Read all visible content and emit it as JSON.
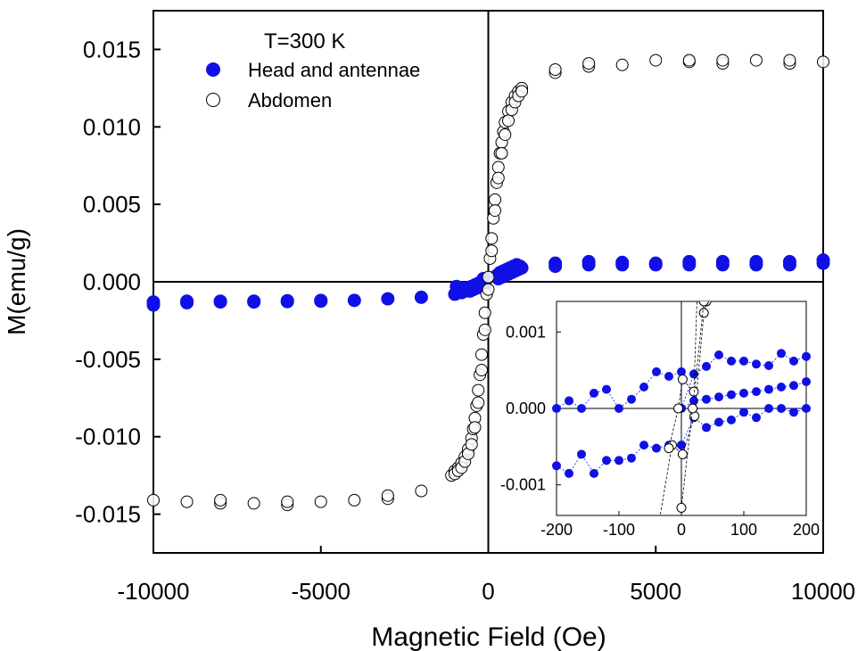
{
  "chart_data": [
    {
      "type": "scatter",
      "title": "",
      "annotation": "T=300 K",
      "xlabel": "Magnetic Field (Oe)",
      "ylabel": "M(emu/g)",
      "xlim": [
        -10000,
        10000
      ],
      "ylim": [
        -0.0175,
        0.0175
      ],
      "x_ticks": [
        -10000,
        -5000,
        0,
        5000,
        10000
      ],
      "x_tick_labels": [
        "-10000",
        "-5000",
        "0",
        "5000",
        "10000"
      ],
      "y_ticks": [
        -0.015,
        -0.01,
        -0.005,
        0.0,
        0.005,
        0.01,
        0.015
      ],
      "y_tick_labels": [
        "-0.015",
        "-0.010",
        "-0.005",
        "0.000",
        "0.005",
        "0.010",
        "0.015"
      ],
      "grid": false,
      "legend": "top-left",
      "series": [
        {
          "name": "Head and antennae",
          "marker": "filled-circle",
          "color": "#1010e6",
          "points": [
            [
              -10000,
              -0.0015
            ],
            [
              -10000,
              -0.0013
            ],
            [
              -9000,
              -0.00135
            ],
            [
              -9000,
              -0.00125
            ],
            [
              -8000,
              -0.0013
            ],
            [
              -8000,
              -0.00125
            ],
            [
              -7000,
              -0.0013
            ],
            [
              -7000,
              -0.00125
            ],
            [
              -6000,
              -0.00128
            ],
            [
              -6000,
              -0.00122
            ],
            [
              -5000,
              -0.00125
            ],
            [
              -5000,
              -0.0012
            ],
            [
              -4000,
              -0.0012
            ],
            [
              -3000,
              -0.0011
            ],
            [
              -2000,
              -0.001
            ],
            [
              -1000,
              -0.0008
            ],
            [
              -950,
              -0.0003
            ],
            [
              -900,
              -0.0006
            ],
            [
              -850,
              -0.0005
            ],
            [
              -800,
              -0.0007
            ],
            [
              -750,
              -0.0004
            ],
            [
              -700,
              -0.0006
            ],
            [
              -650,
              -0.0005
            ],
            [
              -600,
              -0.0004
            ],
            [
              -550,
              -0.0006
            ],
            [
              -500,
              -0.0003
            ],
            [
              -450,
              -0.0005
            ],
            [
              -400,
              -0.0002
            ],
            [
              -350,
              -0.0004
            ],
            [
              -300,
              -0.0001
            ],
            [
              -250,
              -0.0003
            ],
            [
              -200,
              0.0
            ],
            [
              -150,
              0.0002
            ],
            [
              -100,
              -0.0002
            ],
            [
              250,
              0.0004
            ],
            [
              300,
              0.0002
            ],
            [
              350,
              0.0006
            ],
            [
              400,
              0.0003
            ],
            [
              450,
              0.0007
            ],
            [
              500,
              0.0004
            ],
            [
              550,
              0.0008
            ],
            [
              600,
              0.0005
            ],
            [
              650,
              0.0009
            ],
            [
              700,
              0.0006
            ],
            [
              750,
              0.001
            ],
            [
              800,
              0.0007
            ],
            [
              850,
              0.0011
            ],
            [
              900,
              0.0008
            ],
            [
              950,
              0.001
            ],
            [
              1000,
              0.0009
            ],
            [
              2000,
              0.0012
            ],
            [
              2000,
              0.001
            ],
            [
              3000,
              0.0013
            ],
            [
              3000,
              0.0011
            ],
            [
              4000,
              0.00125
            ],
            [
              4000,
              0.0011
            ],
            [
              5000,
              0.0012
            ],
            [
              5000,
              0.0011
            ],
            [
              6000,
              0.0013
            ],
            [
              6000,
              0.0011
            ],
            [
              7000,
              0.0013
            ],
            [
              7000,
              0.0011
            ],
            [
              8000,
              0.0013
            ],
            [
              8000,
              0.0011
            ],
            [
              9000,
              0.0013
            ],
            [
              9000,
              0.0011
            ],
            [
              10000,
              0.0014
            ],
            [
              10000,
              0.0012
            ]
          ]
        },
        {
          "name": "Abdomen",
          "marker": "open-circle",
          "color": "#000000",
          "points": [
            [
              -10000,
              -0.0141
            ],
            [
              -9000,
              -0.0142
            ],
            [
              -8000,
              -0.0143
            ],
            [
              -8000,
              -0.0141
            ],
            [
              -7000,
              -0.0143
            ],
            [
              -6000,
              -0.0144
            ],
            [
              -6000,
              -0.0142
            ],
            [
              -5000,
              -0.0142
            ],
            [
              -4000,
              -0.0141
            ],
            [
              -3000,
              -0.014
            ],
            [
              -3000,
              -0.0138
            ],
            [
              -2000,
              -0.0135
            ],
            [
              -1100,
              -0.0125
            ],
            [
              -1000,
              -0.0122
            ],
            [
              -900,
              -0.012
            ],
            [
              -800,
              -0.0117
            ],
            [
              -700,
              -0.0113
            ],
            [
              -600,
              -0.0108
            ],
            [
              -500,
              -0.0101
            ],
            [
              -450,
              -0.0095
            ],
            [
              -400,
              -0.0088
            ],
            [
              -350,
              -0.008
            ],
            [
              -300,
              -0.007
            ],
            [
              -250,
              -0.006
            ],
            [
              -200,
              -0.0047
            ],
            [
              -150,
              -0.0034
            ],
            [
              -100,
              -0.002
            ],
            [
              -50,
              -0.0008
            ],
            [
              0,
              0.0003
            ],
            [
              50,
              0.0015
            ],
            [
              100,
              0.0028
            ],
            [
              150,
              0.0041
            ],
            [
              200,
              0.0053
            ],
            [
              250,
              0.0064
            ],
            [
              300,
              0.0074
            ],
            [
              350,
              0.0083
            ],
            [
              400,
              0.009
            ],
            [
              450,
              0.0097
            ],
            [
              500,
              0.0103
            ],
            [
              600,
              0.011
            ],
            [
              700,
              0.0116
            ],
            [
              800,
              0.012
            ],
            [
              900,
              0.0123
            ],
            [
              1000,
              0.0125
            ],
            [
              -1000,
              -0.0124
            ],
            [
              -900,
              -0.0122
            ],
            [
              -800,
              -0.012
            ],
            [
              -700,
              -0.0116
            ],
            [
              -600,
              -0.0111
            ],
            [
              -500,
              -0.0105
            ],
            [
              -400,
              -0.0094
            ],
            [
              -300,
              -0.0078
            ],
            [
              -200,
              -0.0057
            ],
            [
              -100,
              -0.0031
            ],
            [
              0,
              -0.0005
            ],
            [
              100,
              0.002
            ],
            [
              200,
              0.0046
            ],
            [
              300,
              0.0067
            ],
            [
              400,
              0.0083
            ],
            [
              500,
              0.0095
            ],
            [
              600,
              0.0104
            ],
            [
              700,
              0.0111
            ],
            [
              800,
              0.0116
            ],
            [
              900,
              0.012
            ],
            [
              1000,
              0.0123
            ],
            [
              2000,
              0.0135
            ],
            [
              2000,
              0.0137
            ],
            [
              3000,
              0.0139
            ],
            [
              3000,
              0.0141
            ],
            [
              4000,
              0.014
            ],
            [
              5000,
              0.0143
            ],
            [
              6000,
              0.0142
            ],
            [
              6000,
              0.0143
            ],
            [
              7000,
              0.0141
            ],
            [
              7000,
              0.0143
            ],
            [
              8000,
              0.0143
            ],
            [
              9000,
              0.0141
            ],
            [
              9000,
              0.0143
            ],
            [
              10000,
              0.0142
            ]
          ]
        }
      ]
    },
    {
      "type": "scatter",
      "title": "",
      "inset": true,
      "xlabel": "",
      "ylabel": "",
      "xlim": [
        -200,
        200
      ],
      "ylim": [
        -0.0014,
        0.0014
      ],
      "x_ticks": [
        -200,
        -100,
        0,
        100,
        200
      ],
      "x_tick_labels": [
        "-200",
        "-100",
        "0",
        "100",
        "200"
      ],
      "y_ticks": [
        -0.001,
        0.0,
        0.001
      ],
      "y_tick_labels": [
        "-0.001",
        "0.000",
        "0.001"
      ],
      "grid": false,
      "connected": true,
      "series": [
        {
          "name": "Head and antennae",
          "marker": "filled-circle",
          "color": "#1010e6",
          "lines": [
            [
              [
                -200,
                -0.00075
              ],
              [
                -180,
                -0.00085
              ],
              [
                -160,
                -0.0006
              ],
              [
                -140,
                -0.00085
              ],
              [
                -120,
                -0.00068
              ],
              [
                -100,
                -0.00068
              ],
              [
                -80,
                -0.00065
              ],
              [
                -60,
                -0.00048
              ],
              [
                -40,
                -0.00052
              ],
              [
                -20,
                -0.00048
              ],
              [
                0,
                -0.00048
              ]
            ],
            [
              [
                -200,
                0.0
              ],
              [
                -180,
                0.0001
              ],
              [
                -160,
                0.0
              ],
              [
                -140,
                0.0002
              ],
              [
                -120,
                0.00025
              ],
              [
                -100,
                0.0
              ],
              [
                -80,
                0.00012
              ],
              [
                -60,
                0.00028
              ],
              [
                -40,
                0.00048
              ],
              [
                -20,
                0.00042
              ],
              [
                0,
                0.00048
              ]
            ],
            [
              [
                0,
                0.0
              ],
              [
                20,
                0.00045
              ],
              [
                40,
                0.00055
              ],
              [
                60,
                0.0007
              ],
              [
                80,
                0.00062
              ],
              [
                100,
                0.00062
              ],
              [
                120,
                0.00058
              ],
              [
                140,
                0.00056
              ],
              [
                160,
                0.00072
              ],
              [
                180,
                0.00062
              ],
              [
                200,
                0.00068
              ]
            ],
            [
              [
                0,
                -0.00048
              ],
              [
                20,
                -0.00012
              ],
              [
                40,
                -0.00025
              ],
              [
                60,
                -0.00018
              ],
              [
                80,
                -0.00015
              ],
              [
                100,
                -5e-05
              ],
              [
                120,
                -0.00012
              ],
              [
                140,
                0.0
              ],
              [
                160,
                0.0
              ],
              [
                180,
                -5e-05
              ],
              [
                200,
                0.0
              ]
            ],
            [
              [
                0,
                0.0
              ],
              [
                20,
                0.0001
              ],
              [
                40,
                0.00012
              ],
              [
                60,
                0.00015
              ],
              [
                80,
                0.00018
              ],
              [
                100,
                0.0002
              ],
              [
                120,
                0.00022
              ],
              [
                140,
                0.00025
              ],
              [
                160,
                0.00028
              ],
              [
                180,
                0.0003
              ],
              [
                200,
                0.00035
              ]
            ]
          ]
        },
        {
          "name": "Abdomen",
          "marker": "open-circle",
          "color": "#000000",
          "lines": [
            [
              [
                -36,
                -0.0015
              ],
              [
                -15,
                -0.00048
              ],
              [
                2,
                -0.0006
              ],
              [
                21,
                -0.0001
              ],
              [
                36,
                0.00125
              ],
              [
                40,
                0.0014
              ]
            ],
            [
              [
                -20,
                -0.00052
              ],
              [
                -5,
                0.0
              ],
              [
                2,
                0.00038
              ],
              [
                20,
                0.00022
              ],
              [
                25,
                0.00142
              ]
            ],
            [
              [
                0,
                -0.0013
              ],
              [
                18,
                0.0
              ],
              [
                36,
                0.0014
              ]
            ]
          ]
        }
      ]
    }
  ]
}
